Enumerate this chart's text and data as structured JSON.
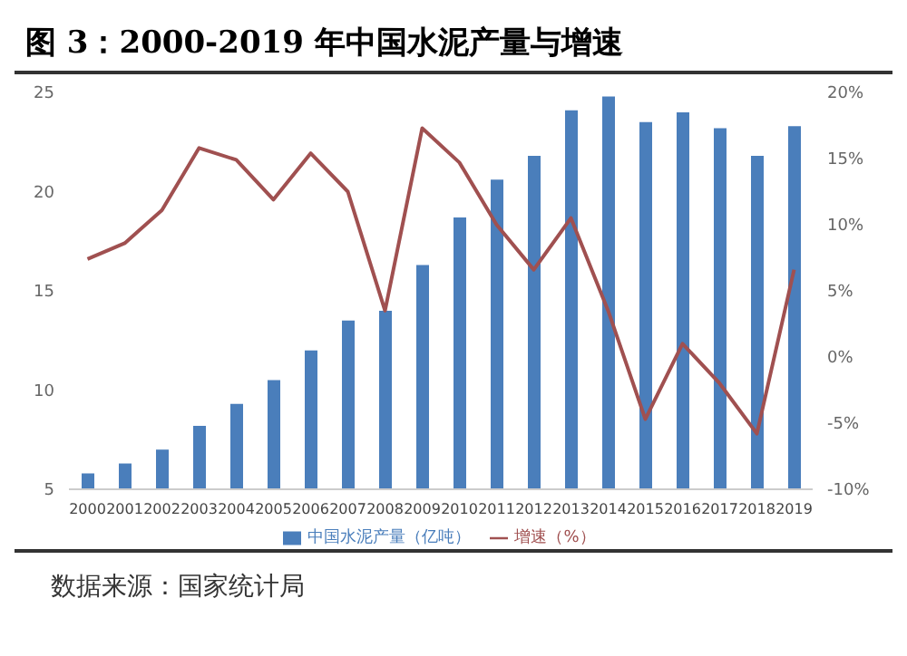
{
  "chart_data": {
    "type": "bar",
    "title": "图 3：2000-2019 年中国水泥产量与增速",
    "categories": [
      "2000",
      "2001",
      "2002",
      "2003",
      "2004",
      "2005",
      "2006",
      "2007",
      "2008",
      "2009",
      "2010",
      "2011",
      "2012",
      "2013",
      "2014",
      "2015",
      "2016",
      "2017",
      "2018",
      "2019"
    ],
    "series": [
      {
        "name": "中国水泥产量（亿吨）",
        "color": "#4a7ebb",
        "values": [
          5.8,
          6.3,
          7.0,
          8.2,
          9.3,
          10.5,
          12.0,
          13.5,
          14.0,
          16.3,
          18.7,
          20.6,
          21.8,
          24.1,
          24.8,
          23.5,
          24.0,
          23.2,
          21.8,
          23.3
        ]
      },
      {
        "name": "增速（%）",
        "type": "line",
        "axis": "y2",
        "color": "#a05050",
        "values": [
          7.4,
          8.6,
          11.1,
          15.8,
          14.9,
          11.9,
          15.4,
          12.5,
          3.5,
          17.3,
          14.7,
          10.0,
          6.6,
          10.5,
          3.5,
          -4.7,
          1.0,
          -2.0,
          -5.8,
          6.6
        ]
      }
    ],
    "ylim": [
      5,
      25
    ],
    "yticks": [
      5,
      10,
      15,
      20,
      25
    ],
    "y2lim": [
      -10,
      20
    ],
    "y2ticks": [
      {
        "value": -10,
        "label": "-10%"
      },
      {
        "value": -5,
        "label": "-5%"
      },
      {
        "value": 0,
        "label": "0%"
      },
      {
        "value": 5,
        "label": "5%"
      },
      {
        "value": 10,
        "label": "10%"
      },
      {
        "value": 15,
        "label": "15%"
      },
      {
        "value": 20,
        "label": "20%"
      }
    ],
    "legend": "bottom",
    "grid": false,
    "marker": "none",
    "line_style": "solid",
    "annotations": [
      "数据来源：国家统计局"
    ]
  }
}
